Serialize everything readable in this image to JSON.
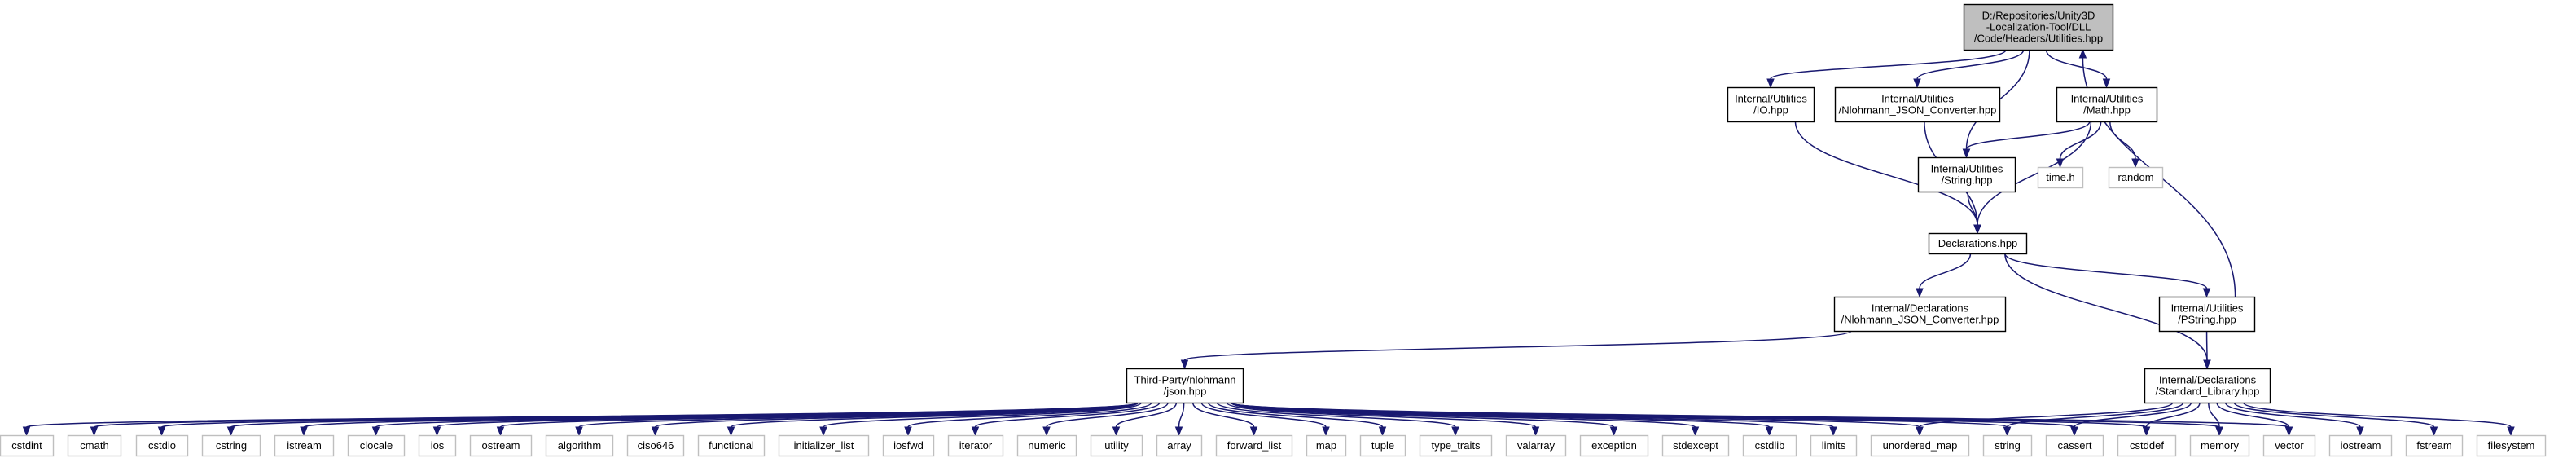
{
  "nodes": [
    {
      "id": "utilities",
      "lines": [
        "D:/Repositories/Unity3D",
        "-Localization-Tool/DLL",
        "/Code/Headers/Utilities.hpp"
      ],
      "kind": "root"
    },
    {
      "id": "io",
      "lines": [
        "Internal/Utilities",
        "/IO.hpp"
      ],
      "kind": "internal"
    },
    {
      "id": "nlohmann_conv_util",
      "lines": [
        "Internal/Utilities",
        "/Nlohmann_JSON_Converter.hpp"
      ],
      "kind": "internal"
    },
    {
      "id": "math",
      "lines": [
        "Internal/Utilities",
        "/Math.hpp"
      ],
      "kind": "internal"
    },
    {
      "id": "string_hpp",
      "lines": [
        "Internal/Utilities",
        "/String.hpp"
      ],
      "kind": "internal"
    },
    {
      "id": "time_h",
      "lines": [
        "time.h"
      ],
      "kind": "external"
    },
    {
      "id": "random",
      "lines": [
        "random"
      ],
      "kind": "external"
    },
    {
      "id": "declarations",
      "lines": [
        "Declarations.hpp"
      ],
      "kind": "internal"
    },
    {
      "id": "nlohmann_conv_decl",
      "lines": [
        "Internal/Declarations",
        "/Nlohmann_JSON_Converter.hpp"
      ],
      "kind": "internal"
    },
    {
      "id": "pstring",
      "lines": [
        "Internal/Utilities",
        "/PString.hpp"
      ],
      "kind": "internal"
    },
    {
      "id": "json",
      "lines": [
        "Third-Party/nlohmann",
        "/json.hpp"
      ],
      "kind": "internal"
    },
    {
      "id": "stdlib",
      "lines": [
        "Internal/Declarations",
        "/Standard_Library.hpp"
      ],
      "kind": "internal"
    },
    {
      "id": "cstdint",
      "lines": [
        "cstdint"
      ],
      "kind": "external"
    },
    {
      "id": "cmath",
      "lines": [
        "cmath"
      ],
      "kind": "external"
    },
    {
      "id": "cstdio",
      "lines": [
        "cstdio"
      ],
      "kind": "external"
    },
    {
      "id": "cstring",
      "lines": [
        "cstring"
      ],
      "kind": "external"
    },
    {
      "id": "istream",
      "lines": [
        "istream"
      ],
      "kind": "external"
    },
    {
      "id": "clocale",
      "lines": [
        "clocale"
      ],
      "kind": "external"
    },
    {
      "id": "ios",
      "lines": [
        "ios"
      ],
      "kind": "external"
    },
    {
      "id": "ostream",
      "lines": [
        "ostream"
      ],
      "kind": "external"
    },
    {
      "id": "algorithm",
      "lines": [
        "algorithm"
      ],
      "kind": "external"
    },
    {
      "id": "ciso646",
      "lines": [
        "ciso646"
      ],
      "kind": "external"
    },
    {
      "id": "functional",
      "lines": [
        "functional"
      ],
      "kind": "external"
    },
    {
      "id": "initializer_list",
      "lines": [
        "initializer_list"
      ],
      "kind": "external"
    },
    {
      "id": "iosfwd",
      "lines": [
        "iosfwd"
      ],
      "kind": "external"
    },
    {
      "id": "iterator",
      "lines": [
        "iterator"
      ],
      "kind": "external"
    },
    {
      "id": "numeric",
      "lines": [
        "numeric"
      ],
      "kind": "external"
    },
    {
      "id": "utility",
      "lines": [
        "utility"
      ],
      "kind": "external"
    },
    {
      "id": "array",
      "lines": [
        "array"
      ],
      "kind": "external"
    },
    {
      "id": "forward_list",
      "lines": [
        "forward_list"
      ],
      "kind": "external"
    },
    {
      "id": "map",
      "lines": [
        "map"
      ],
      "kind": "external"
    },
    {
      "id": "tuple",
      "lines": [
        "tuple"
      ],
      "kind": "external"
    },
    {
      "id": "type_traits",
      "lines": [
        "type_traits"
      ],
      "kind": "external"
    },
    {
      "id": "valarray",
      "lines": [
        "valarray"
      ],
      "kind": "external"
    },
    {
      "id": "exception",
      "lines": [
        "exception"
      ],
      "kind": "external"
    },
    {
      "id": "stdexcept",
      "lines": [
        "stdexcept"
      ],
      "kind": "external"
    },
    {
      "id": "cstdlib",
      "lines": [
        "cstdlib"
      ],
      "kind": "external"
    },
    {
      "id": "limits",
      "lines": [
        "limits"
      ],
      "kind": "external"
    },
    {
      "id": "unordered_map",
      "lines": [
        "unordered_map"
      ],
      "kind": "external"
    },
    {
      "id": "string",
      "lines": [
        "string"
      ],
      "kind": "external"
    },
    {
      "id": "cassert",
      "lines": [
        "cassert"
      ],
      "kind": "external"
    },
    {
      "id": "cstddef",
      "lines": [
        "cstddef"
      ],
      "kind": "external"
    },
    {
      "id": "memory",
      "lines": [
        "memory"
      ],
      "kind": "external"
    },
    {
      "id": "vector",
      "lines": [
        "vector"
      ],
      "kind": "external"
    },
    {
      "id": "iostream",
      "lines": [
        "iostream"
      ],
      "kind": "external"
    },
    {
      "id": "fstream",
      "lines": [
        "fstream"
      ],
      "kind": "external"
    },
    {
      "id": "filesystem",
      "lines": [
        "filesystem"
      ],
      "kind": "external"
    }
  ],
  "edges": [
    [
      "utilities",
      "io"
    ],
    [
      "utilities",
      "nlohmann_conv_util"
    ],
    [
      "utilities",
      "math"
    ],
    [
      "utilities",
      "string_hpp"
    ],
    [
      "io",
      "declarations"
    ],
    [
      "nlohmann_conv_util",
      "declarations"
    ],
    [
      "math",
      "string_hpp"
    ],
    [
      "math",
      "time_h"
    ],
    [
      "math",
      "random"
    ],
    [
      "math",
      "declarations"
    ],
    [
      "string_hpp",
      "declarations"
    ],
    [
      "declarations",
      "nlohmann_conv_decl"
    ],
    [
      "declarations",
      "pstring"
    ],
    [
      "declarations",
      "stdlib"
    ],
    [
      "pstring",
      "utilities"
    ],
    [
      "pstring",
      "stdlib"
    ],
    [
      "nlohmann_conv_decl",
      "json"
    ],
    [
      "json",
      "cstdint"
    ],
    [
      "json",
      "cmath"
    ],
    [
      "json",
      "cstdio"
    ],
    [
      "json",
      "cstring"
    ],
    [
      "json",
      "istream"
    ],
    [
      "json",
      "clocale"
    ],
    [
      "json",
      "ios"
    ],
    [
      "json",
      "ostream"
    ],
    [
      "json",
      "algorithm"
    ],
    [
      "json",
      "ciso646"
    ],
    [
      "json",
      "functional"
    ],
    [
      "json",
      "initializer_list"
    ],
    [
      "json",
      "iosfwd"
    ],
    [
      "json",
      "iterator"
    ],
    [
      "json",
      "numeric"
    ],
    [
      "json",
      "utility"
    ],
    [
      "json",
      "array"
    ],
    [
      "json",
      "forward_list"
    ],
    [
      "json",
      "map"
    ],
    [
      "json",
      "tuple"
    ],
    [
      "json",
      "type_traits"
    ],
    [
      "json",
      "valarray"
    ],
    [
      "json",
      "exception"
    ],
    [
      "json",
      "stdexcept"
    ],
    [
      "json",
      "cstdlib"
    ],
    [
      "json",
      "limits"
    ],
    [
      "json",
      "unordered_map"
    ],
    [
      "json",
      "string"
    ],
    [
      "json",
      "cassert"
    ],
    [
      "json",
      "cstddef"
    ],
    [
      "json",
      "memory"
    ],
    [
      "json",
      "vector"
    ],
    [
      "stdlib",
      "unordered_map"
    ],
    [
      "stdlib",
      "string"
    ],
    [
      "stdlib",
      "cassert"
    ],
    [
      "stdlib",
      "cstddef"
    ],
    [
      "stdlib",
      "memory"
    ],
    [
      "stdlib",
      "vector"
    ],
    [
      "stdlib",
      "iostream"
    ],
    [
      "stdlib",
      "fstream"
    ],
    [
      "stdlib",
      "filesystem"
    ]
  ]
}
